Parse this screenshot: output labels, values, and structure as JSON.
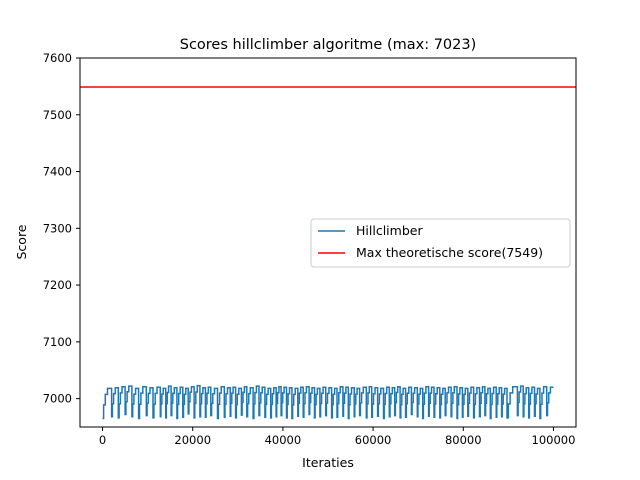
{
  "chart_data": {
    "type": "line",
    "title": "Scores hillclimber algoritme (max: 7023)",
    "xlabel": "Iteraties",
    "ylabel": "Score",
    "xlim": [
      -5000,
      105000
    ],
    "ylim": [
      6950,
      7600
    ],
    "xticks": [
      0,
      20000,
      40000,
      60000,
      80000,
      100000
    ],
    "xtick_labels": [
      "0",
      "20000",
      "40000",
      "60000",
      "80000",
      "100000"
    ],
    "yticks": [
      7000,
      7100,
      7200,
      7300,
      7400,
      7500,
      7600
    ],
    "ytick_labels": [
      "7000",
      "7100",
      "7200",
      "7300",
      "7400",
      "7500",
      "7600"
    ],
    "grid": false,
    "legend_position": "center-right",
    "series": [
      {
        "name": "Hillclimber",
        "color": "#1f77b4",
        "restart_x": [
          0,
          2000,
          3500,
          5000,
          6500,
          8000,
          9700,
          11200,
          12800,
          14000,
          15200,
          16500,
          17800,
          19000,
          20300,
          21600,
          22800,
          24000,
          25500,
          27000,
          28300,
          29500,
          30800,
          32000,
          33400,
          34700,
          36000,
          37300,
          38500,
          39600,
          40800,
          42000,
          43300,
          44500,
          45800,
          47000,
          48200,
          49500,
          50800,
          52000,
          53300,
          54500,
          55800,
          57000,
          58500,
          59700,
          61000,
          62300,
          63600,
          64800,
          66000,
          67200,
          68500,
          69800,
          71000,
          72300,
          73500,
          74800,
          76000,
          77300,
          78600,
          79800,
          81000,
          82300,
          83600,
          84800,
          86000,
          87300,
          88500,
          89700,
          92000,
          93300,
          94500,
          95800,
          97000,
          98500,
          100000
        ],
        "restart_y": [
          6965,
          6968,
          6966,
          6972,
          6968,
          6965,
          6970,
          6966,
          6968,
          6966,
          6970,
          6965,
          6967,
          6973,
          6966,
          6968,
          6967,
          6970,
          6965,
          6967,
          6969,
          6966,
          6971,
          6968,
          6965,
          6970,
          6967,
          6966,
          6968,
          6970,
          6966,
          6965,
          6969,
          6967,
          6972,
          6966,
          6968,
          6970,
          6966,
          6967,
          6969,
          6965,
          6968,
          6970,
          6966,
          6967,
          6969,
          6965,
          6968,
          6970,
          6966,
          6967,
          6972,
          6968,
          6965,
          6969,
          6967,
          6966,
          6970,
          6968,
          6965,
          6967,
          6969,
          6966,
          6968,
          6970,
          6965,
          6967,
          6968,
          6966,
          6970,
          6968,
          6966,
          6969,
          6965,
          6970,
          7020
        ],
        "plateau_y": [
          7018,
          7019,
          7021,
          7022,
          7018,
          7021,
          7019,
          7020,
          7018,
          7022,
          7019,
          7020,
          7018,
          7021,
          7023,
          7019,
          7020,
          7018,
          7021,
          7019,
          7020,
          7018,
          7021,
          7019,
          7022,
          7020,
          7018,
          7019,
          7021,
          7020,
          7019,
          7018,
          7020,
          7021,
          7019,
          7018,
          7020,
          7019,
          7018,
          7021,
          7020,
          7019,
          7018,
          7020,
          7021,
          7019,
          7018,
          7020,
          7019,
          7021,
          7018,
          7020,
          7019,
          7018,
          7021,
          7020,
          7019,
          7018,
          7020,
          7021,
          7019,
          7018,
          7020,
          7019,
          7021,
          7018,
          7020,
          7019,
          7018,
          7021,
          7022,
          7019,
          7020,
          7018,
          7021,
          7020
        ]
      },
      {
        "name": "Max theoretische score(7549)",
        "color": "#ff0000",
        "y": 7549
      }
    ]
  }
}
